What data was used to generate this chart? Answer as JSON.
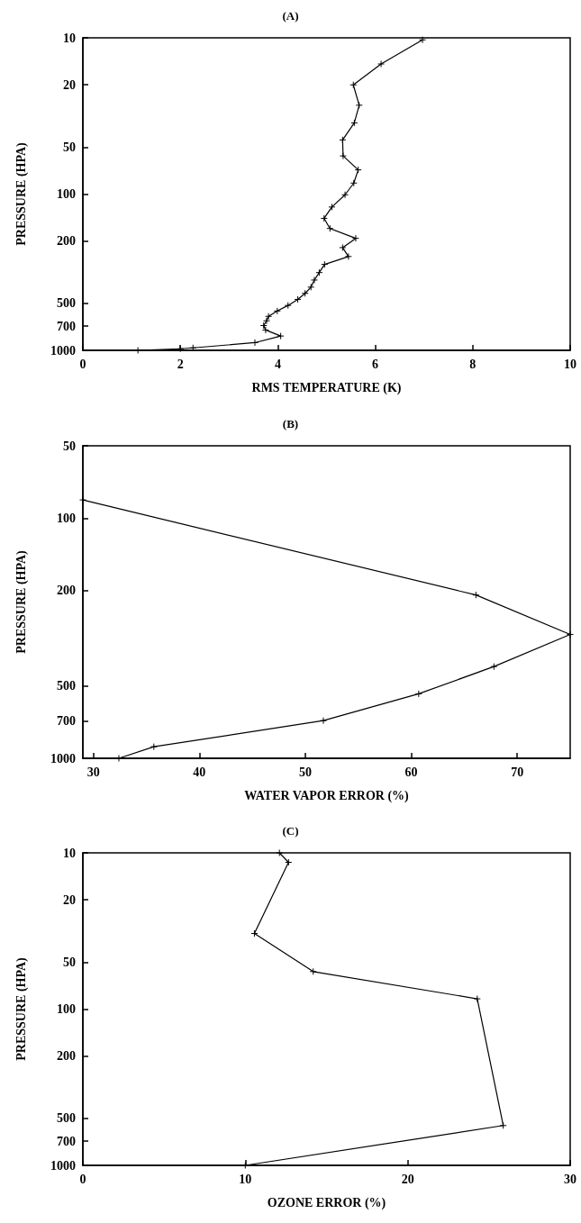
{
  "chart_data": [
    {
      "type": "line",
      "title": "(A)",
      "xlabel": "RMS TEMPERATURE (K)",
      "ylabel": "PRESSURE (HPA)",
      "log": "y",
      "xlim": [
        0,
        10
      ],
      "xticks": [
        0,
        2,
        4,
        6,
        8,
        10
      ],
      "ylim": [
        1000,
        10
      ],
      "yticks": [
        10,
        20,
        50,
        100,
        200,
        500,
        700,
        1000
      ],
      "marker": "cross",
      "line_style": "solid",
      "grid": false,
      "color": "#000000",
      "x": [
        6.97,
        6.12,
        5.55,
        5.67,
        5.57,
        5.33,
        5.34,
        5.65,
        5.56,
        5.38,
        5.11,
        4.95,
        5.07,
        5.6,
        5.33,
        5.45,
        4.96,
        4.85,
        4.75,
        4.68,
        4.56,
        4.41,
        4.21,
        3.99,
        3.81,
        3.77,
        3.71,
        3.75,
        4.06,
        3.53,
        2.26,
        2.0,
        1.13
      ],
      "values": [
        10.3,
        14.7,
        20,
        27,
        35,
        45,
        57,
        70,
        85,
        101,
        121,
        143,
        166,
        192,
        220,
        251,
        282,
        318,
        355,
        394,
        432,
        472,
        516,
        560,
        606,
        647,
        694,
        741,
        810,
        893,
        964,
        977,
        1000
      ]
    },
    {
      "type": "line",
      "title": "(B)",
      "xlabel": "WATER VAPOR ERROR (%)",
      "ylabel": "PRESSURE (HPA)",
      "log": "y",
      "xlim": [
        29,
        75
      ],
      "xticks": [
        30,
        40,
        50,
        60,
        70
      ],
      "ylim": [
        1000,
        50
      ],
      "yticks": [
        50,
        100,
        200,
        500,
        700,
        1000
      ],
      "marker": "cross",
      "line_style": "solid",
      "grid": false,
      "color": "#000000",
      "x": [
        29,
        66.1,
        75,
        67.8,
        60.7,
        51.7,
        35.7,
        32.4
      ],
      "values": [
        84,
        209,
        305,
        415,
        539,
        697,
        895,
        1000
      ]
    },
    {
      "type": "line",
      "title": "(C)",
      "xlabel": "OZONE ERROR (%)",
      "ylabel": "PRESSURE (HPA)",
      "log": "y",
      "xlim": [
        0,
        30
      ],
      "xticks": [
        0,
        10,
        20,
        30
      ],
      "ylim": [
        1000,
        10
      ],
      "yticks": [
        10,
        20,
        50,
        100,
        200,
        500,
        700,
        1000
      ],
      "marker": "cross",
      "line_style": "solid",
      "grid": false,
      "color": "#000000",
      "x": [
        12.1,
        12.66,
        10.56,
        14.18,
        24.28,
        25.88,
        10.0
      ],
      "values": [
        10,
        11.5,
        32.8,
        57.5,
        85.9,
        556,
        1000
      ]
    }
  ]
}
